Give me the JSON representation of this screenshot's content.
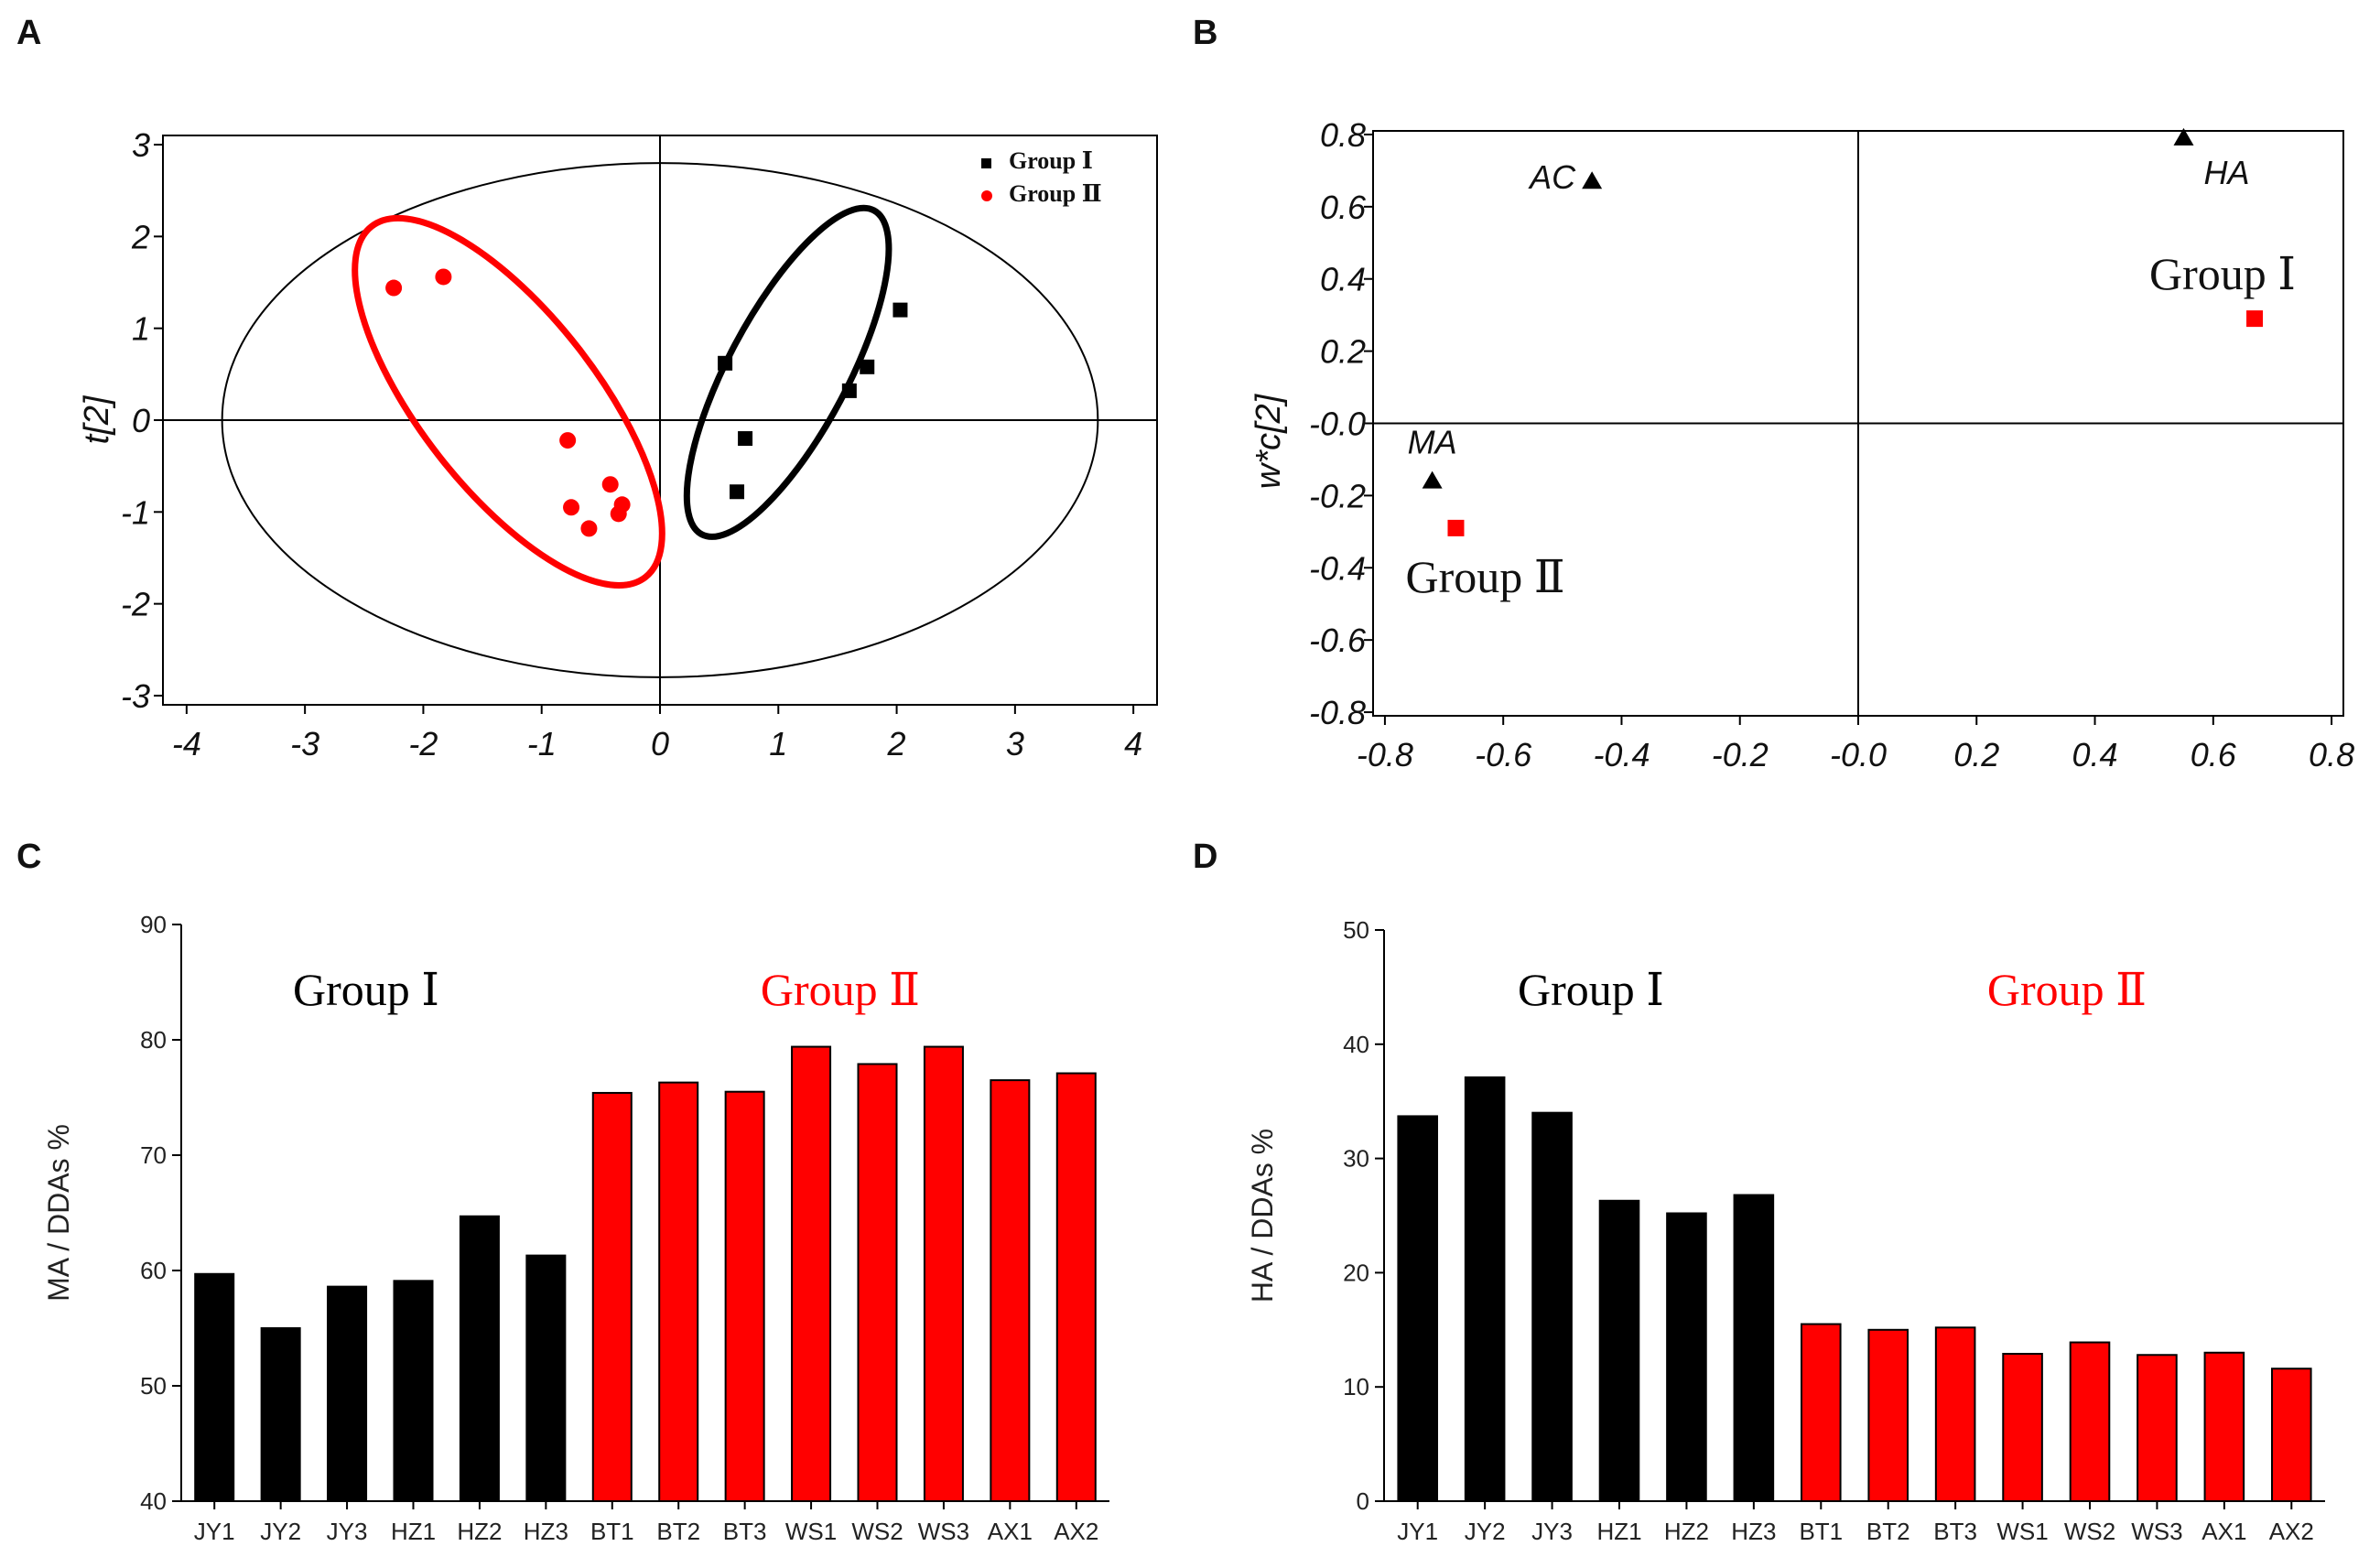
{
  "panels": {
    "A": "A",
    "B": "B",
    "C": "C",
    "D": "D"
  },
  "colors": {
    "group1": "#000000",
    "group2": "#ff0000",
    "axis": "#000000"
  },
  "chart_data": [
    {
      "type": "scatter",
      "panel": "A",
      "xlabel": "",
      "ylabel": "t[2]",
      "xlim": [
        -4.2,
        4.2
      ],
      "ylim": [
        -3.1,
        3.1
      ],
      "xticks": [
        -4,
        -3,
        -2,
        -1,
        0,
        1,
        2,
        3,
        4
      ],
      "yticks": [
        3,
        2,
        1,
        0,
        -1,
        -2,
        -3
      ],
      "legend": [
        "Group Ⅰ",
        "Group Ⅱ"
      ],
      "legend_position": "top-right",
      "series": [
        {
          "name": "Group Ⅰ",
          "marker": "square",
          "color": "#000000",
          "points": [
            [
              0.55,
              0.62
            ],
            [
              0.72,
              -0.2
            ],
            [
              0.65,
              -0.78
            ],
            [
              1.6,
              0.32
            ],
            [
              1.75,
              0.58
            ],
            [
              2.03,
              1.2
            ]
          ]
        },
        {
          "name": "Group Ⅱ",
          "marker": "circle",
          "color": "#ff0000",
          "points": [
            [
              -2.25,
              1.44
            ],
            [
              -1.83,
              1.56
            ],
            [
              -0.78,
              -0.22
            ],
            [
              -0.75,
              -0.95
            ],
            [
              -0.6,
              -1.18
            ],
            [
              -0.42,
              -0.7
            ],
            [
              -0.32,
              -0.92
            ],
            [
              -0.35,
              -1.02
            ]
          ]
        }
      ],
      "ellipses": [
        {
          "name": "hotelling-t2",
          "cx": 0,
          "cy": 0,
          "rx": 3.7,
          "ry": 2.8,
          "angle": 0,
          "color": "#000000"
        },
        {
          "name": "group-1-ellipse",
          "cx": 1.08,
          "cy": 0.52,
          "rx": 1.55,
          "ry": 0.65,
          "angle": 62,
          "color": "#000000"
        },
        {
          "name": "group-2-ellipse",
          "cx": -1.28,
          "cy": 0.2,
          "rx": 1.88,
          "ry": 0.96,
          "angle": -52,
          "color": "#ff0000"
        }
      ]
    },
    {
      "type": "scatter",
      "panel": "B",
      "xlabel": "",
      "ylabel": "w*c[2]",
      "xlim": [
        -0.82,
        0.82
      ],
      "ylim": [
        -0.81,
        0.81
      ],
      "xticks": [
        -0.8,
        -0.6,
        -0.4,
        -0.2,
        0.0,
        0.2,
        0.4,
        0.6,
        0.8
      ],
      "xtick_labels": [
        "-0.8",
        "-0.6",
        "-0.4",
        "-0.2",
        "-0.0",
        "0.2",
        "0.4",
        "0.6",
        "0.8"
      ],
      "yticks": [
        0.8,
        0.6,
        0.4,
        0.2,
        0.0,
        -0.2,
        -0.4,
        -0.6,
        -0.8
      ],
      "ytick_labels": [
        "0.8",
        "0.6",
        "0.4",
        "0.2",
        "-0.0",
        "-0.2",
        "-0.4",
        "-0.6",
        "-0.8"
      ],
      "variables": [
        {
          "label": "AC",
          "x": -0.45,
          "y": 0.67
        },
        {
          "label": "HA",
          "x": 0.55,
          "y": 0.79
        },
        {
          "label": "MA",
          "x": -0.72,
          "y": -0.16
        }
      ],
      "groups": [
        {
          "label": "Group Ⅰ",
          "x": 0.67,
          "y": 0.29
        },
        {
          "label": "Group Ⅱ",
          "x": -0.68,
          "y": -0.29
        }
      ]
    },
    {
      "type": "bar",
      "panel": "C",
      "ylabel": "MA / DDAs %",
      "ylim": [
        40,
        90
      ],
      "yticks": [
        40,
        50,
        60,
        70,
        80,
        90
      ],
      "categories": [
        "JY1",
        "JY2",
        "JY3",
        "HZ1",
        "HZ2",
        "HZ3",
        "BT1",
        "BT2",
        "BT3",
        "WS1",
        "WS2",
        "WS3",
        "AX1",
        "AX2"
      ],
      "values": [
        59.7,
        55,
        58.6,
        59.1,
        64.7,
        61.3,
        75.4,
        76.3,
        75.5,
        79.4,
        77.9,
        79.4,
        76.5,
        77.1
      ],
      "group_of": [
        1,
        1,
        1,
        1,
        1,
        1,
        2,
        2,
        2,
        2,
        2,
        2,
        2,
        2
      ],
      "annotations": [
        "Group Ⅰ",
        "Group Ⅱ"
      ]
    },
    {
      "type": "bar",
      "panel": "D",
      "ylabel": "HA / DDAs %",
      "ylim": [
        0,
        50
      ],
      "yticks": [
        0,
        10,
        20,
        30,
        40,
        50
      ],
      "categories": [
        "JY1",
        "JY2",
        "JY3",
        "HZ1",
        "HZ2",
        "HZ3",
        "BT1",
        "BT2",
        "BT3",
        "WS1",
        "WS2",
        "WS3",
        "AX1",
        "AX2"
      ],
      "values": [
        33.7,
        37.1,
        34,
        26.3,
        25.2,
        26.8,
        15.5,
        15,
        15.2,
        12.9,
        13.9,
        12.8,
        13,
        11.6
      ],
      "group_of": [
        1,
        1,
        1,
        1,
        1,
        1,
        2,
        2,
        2,
        2,
        2,
        2,
        2,
        2
      ],
      "annotations": [
        "Group Ⅰ",
        "Group Ⅱ"
      ]
    }
  ]
}
